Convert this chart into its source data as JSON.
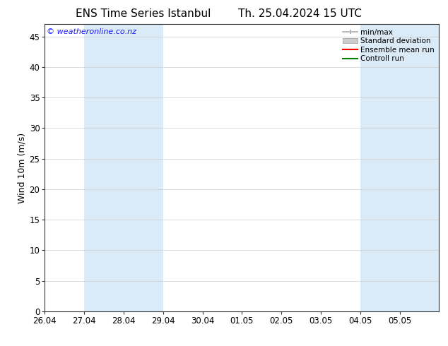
{
  "title_left": "ENS Time Series Istanbul",
  "title_right": "Th. 25.04.2024 15 UTC",
  "ylabel": "Wind 10m (m/s)",
  "ylim": [
    0,
    47
  ],
  "yticks": [
    0,
    5,
    10,
    15,
    20,
    25,
    30,
    35,
    40,
    45
  ],
  "xlim": [
    0,
    10
  ],
  "xtick_labels": [
    "26.04",
    "27.04",
    "28.04",
    "29.04",
    "30.04",
    "01.05",
    "02.05",
    "03.05",
    "04.05",
    "05.05"
  ],
  "xtick_positions": [
    0,
    1,
    2,
    3,
    4,
    5,
    6,
    7,
    8,
    9
  ],
  "shaded_bands": [
    [
      1.0,
      2.0
    ],
    [
      2.0,
      3.0
    ],
    [
      8.0,
      9.0
    ],
    [
      9.0,
      10.0
    ]
  ],
  "band_color": "#daeaf7",
  "background_color": "#ffffff",
  "watermark": "© weatheronline.co.nz",
  "watermark_color": "#1a1aff",
  "legend_labels": [
    "min/max",
    "Standard deviation",
    "Ensemble mean run",
    "Controll run"
  ],
  "legend_colors_line": [
    "#aaaaaa",
    "#cccccc",
    "#ff0000",
    "#008000"
  ],
  "title_fontsize": 11,
  "tick_fontsize": 8.5,
  "ylabel_fontsize": 9,
  "watermark_fontsize": 8
}
